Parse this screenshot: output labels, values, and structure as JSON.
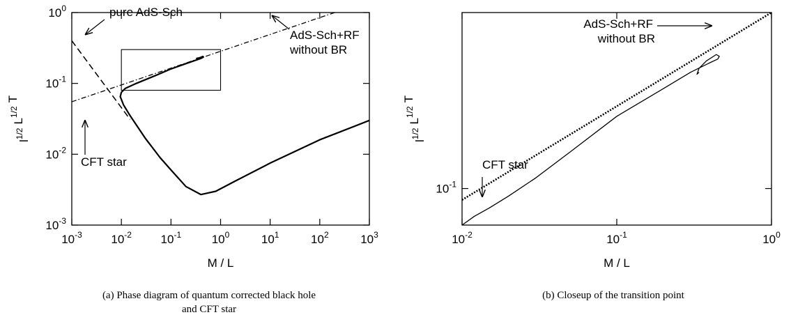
{
  "chart_data": [
    {
      "type": "line",
      "log_x": true,
      "log_y": true,
      "xlabel": "M / L",
      "ylabel": [
        {
          "text": "l",
          "sup": "1/2"
        },
        {
          "text": "L",
          "sup": "1/2"
        },
        {
          "text": "T"
        }
      ],
      "xlim": [
        0.001,
        1000
      ],
      "ylim": [
        0.001,
        1
      ],
      "xticks": [
        {
          "value": 0.001,
          "label": "10",
          "sup": "-3"
        },
        {
          "value": 0.01,
          "label": "10",
          "sup": "-2"
        },
        {
          "value": 0.1,
          "label": "10",
          "sup": "-1"
        },
        {
          "value": 1,
          "label": "10",
          "sup": "0"
        },
        {
          "value": 10,
          "label": "10",
          "sup": "1"
        },
        {
          "value": 100,
          "label": "10",
          "sup": "2"
        },
        {
          "value": 1000,
          "label": "10",
          "sup": "3"
        }
      ],
      "yticks": [
        {
          "value": 0.001,
          "label": "10",
          "sup": "-3"
        },
        {
          "value": 0.01,
          "label": "10",
          "sup": "-2"
        },
        {
          "value": 0.1,
          "label": "10",
          "sup": "-1"
        },
        {
          "value": 1,
          "label": "10",
          "sup": "0"
        }
      ],
      "series": [
        {
          "line_style": "solid",
          "color": "#000000",
          "x": [
            1000,
            100,
            10,
            2,
            0.8,
            0.4,
            0.2,
            0.1,
            0.06,
            0.03,
            0.015,
            0.011,
            0.0095,
            0.01,
            0.012,
            0.02,
            0.05,
            0.1,
            0.2,
            0.3,
            0.4,
            0.45,
            0.44,
            0.38,
            0.33,
            0.35
          ],
          "values": [
            0.03,
            0.016,
            0.0075,
            0.0042,
            0.003,
            0.0027,
            0.0035,
            0.006,
            0.009,
            0.017,
            0.035,
            0.05,
            0.065,
            0.075,
            0.085,
            0.1,
            0.13,
            0.16,
            0.19,
            0.21,
            0.225,
            0.235,
            0.24,
            0.23,
            0.225,
            0.22
          ]
        },
        {
          "line_style": "dashed",
          "color": "#000000",
          "x": [
            0.001,
            0.015
          ],
          "values": [
            0.4,
            0.031
          ]
        },
        {
          "line_style": "dashdot",
          "color": "#000000",
          "x": [
            0.001,
            200
          ],
          "values": [
            0.055,
            1
          ]
        }
      ],
      "inset": {
        "x": [
          0.01,
          1
        ],
        "y": [
          0.08,
          0.3
        ]
      },
      "annotations": [
        "pure AdS-Sch",
        "AdS-Sch+RF",
        "without BR",
        "CFT star"
      ],
      "caption": [
        "(a) Phase diagram of quantum corrected black hole",
        "and CFT star"
      ]
    },
    {
      "type": "line",
      "log_x": true,
      "log_y": true,
      "xlabel": "M / L",
      "ylabel": [
        {
          "text": "l",
          "sup": "1/2"
        },
        {
          "text": "L",
          "sup": "1/2"
        },
        {
          "text": "T"
        }
      ],
      "xlim": [
        0.01,
        1
      ],
      "ylim": [
        0.082,
        0.26
      ],
      "xticks": [
        {
          "value": 0.01,
          "label": "10",
          "sup": "-2"
        },
        {
          "value": 0.1,
          "label": "10",
          "sup": "-1"
        },
        {
          "value": 1,
          "label": "10",
          "sup": "0"
        }
      ],
      "yticks": [
        {
          "value": 0.1,
          "label": "10",
          "sup": "-1"
        }
      ],
      "series": [
        {
          "line_style": "solid",
          "color": "#000000",
          "x": [
            0.01,
            0.012,
            0.015,
            0.02,
            0.03,
            0.05,
            0.1,
            0.2,
            0.3,
            0.4,
            0.45,
            0.46,
            0.44,
            0.38,
            0.34,
            0.33,
            0.34
          ],
          "values": [
            0.082,
            0.086,
            0.09,
            0.096,
            0.106,
            0.122,
            0.148,
            0.172,
            0.188,
            0.198,
            0.202,
            0.205,
            0.207,
            0.2,
            0.192,
            0.186,
            0.188
          ]
        },
        {
          "line_style": "dotted",
          "color": "#000000",
          "x": [
            0.01,
            1
          ],
          "values": [
            0.094,
            0.26
          ]
        }
      ],
      "annotations": [
        "AdS-Sch+RF",
        "without BR",
        "CFT star"
      ],
      "caption": [
        "(b) Closeup of the transition point"
      ]
    }
  ]
}
